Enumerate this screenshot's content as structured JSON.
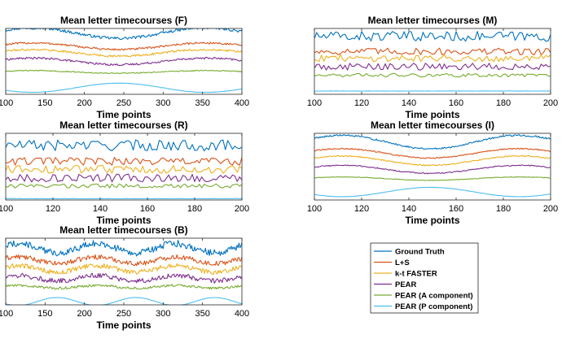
{
  "chart_data": {
    "type": "line",
    "series_names": [
      "Ground Truth",
      "L+S",
      "k-t FASTER",
      "PEAR",
      "PEAR (A component)",
      "PEAR (P component)"
    ],
    "series_colors": [
      "#0072BD",
      "#D95319",
      "#EDB120",
      "#7E2F8E",
      "#77AC30",
      "#4DBEEE"
    ],
    "panels": [
      {
        "id": "F",
        "title": "Mean letter timecourses (F)",
        "xlabel": "Time points",
        "xlim": [
          100,
          400
        ],
        "xticks": [
          100,
          150,
          200,
          250,
          300,
          350,
          400
        ],
        "ylim": [
          0,
          10
        ],
        "yticks_visible": false,
        "pattern": "smooth",
        "period": 220,
        "noise": 0.25,
        "series_offsets": [
          9.3,
          7.3,
          6.3,
          5.0,
          3.4,
          1.0
        ],
        "series_amplitudes": [
          0.8,
          0.5,
          0.5,
          0.5,
          0.2,
          0.7
        ]
      },
      {
        "id": "M",
        "title": "Mean letter timecourses (M)",
        "xlabel": "Time points",
        "xlim": [
          100,
          200
        ],
        "xticks": [
          100,
          120,
          140,
          160,
          180,
          200
        ],
        "ylim": [
          0,
          10
        ],
        "yticks_visible": false,
        "pattern": "noisy",
        "period": 120,
        "noise": 0.9,
        "series_offsets": [
          8.8,
          6.5,
          5.5,
          4.2,
          2.9,
          0.5
        ],
        "series_amplitudes": [
          0.0,
          0.0,
          0.0,
          0.0,
          0.0,
          0.0
        ]
      },
      {
        "id": "R",
        "title": "Mean letter timecourses (R)",
        "xlabel": "Time points",
        "xlim": [
          100,
          200
        ],
        "xticks": [
          100,
          120,
          140,
          160,
          180,
          200
        ],
        "ylim": [
          0,
          10
        ],
        "yticks_visible": false,
        "pattern": "noisy",
        "period": 120,
        "noise": 1.0,
        "series_offsets": [
          8.2,
          5.8,
          4.6,
          3.3,
          2.1,
          0.2
        ],
        "series_amplitudes": [
          0.0,
          0.0,
          0.0,
          0.0,
          0.0,
          0.0
        ]
      },
      {
        "id": "I",
        "title": "Mean letter timecourses (I)",
        "xlabel": "Time points",
        "xlim": [
          100,
          200
        ],
        "xticks": [
          100,
          120,
          140,
          160,
          180,
          200
        ],
        "ylim": [
          0,
          10
        ],
        "yticks_visible": false,
        "pattern": "smooth",
        "period": 75,
        "noise": 0.15,
        "series_offsets": [
          8.7,
          7.0,
          5.9,
          4.6,
          3.2,
          1.2
        ],
        "series_amplitudes": [
          1.0,
          0.7,
          0.7,
          0.6,
          0.25,
          0.7
        ]
      },
      {
        "id": "B",
        "title": "Mean letter timecourses (B)",
        "xlabel": "Time points",
        "xlim": [
          100,
          400
        ],
        "xticks": [
          100,
          150,
          200,
          250,
          300,
          350,
          400
        ],
        "ylim": [
          0,
          10
        ],
        "yticks_visible": false,
        "pattern": "smooth+noise",
        "period": 100,
        "noise": 0.6,
        "series_offsets": [
          8.5,
          6.7,
          5.4,
          4.0,
          2.7,
          0.5
        ],
        "series_amplitudes": [
          0.7,
          0.5,
          0.5,
          0.4,
          0.2,
          0.6
        ]
      }
    ],
    "legend": {
      "position": "bottom-right",
      "entries": [
        "Ground Truth",
        "L+S",
        "k-t FASTER",
        "PEAR",
        "PEAR (A component)",
        "PEAR (P component)"
      ]
    }
  }
}
